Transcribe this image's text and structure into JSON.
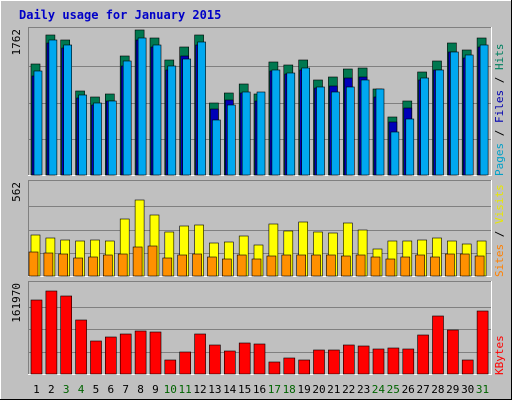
{
  "chart_data": {
    "type": "bar",
    "title": "Daily usage for January 2015",
    "days": [
      "1",
      "2",
      "3",
      "4",
      "5",
      "6",
      "7",
      "8",
      "9",
      "10",
      "11",
      "12",
      "13",
      "14",
      "15",
      "16",
      "17",
      "18",
      "19",
      "20",
      "21",
      "22",
      "23",
      "24",
      "25",
      "26",
      "27",
      "28",
      "29",
      "30",
      "31"
    ],
    "weekend_days": [
      "3",
      "4",
      "10",
      "11",
      "17",
      "18",
      "24",
      "25",
      "31"
    ],
    "day_color": "#000000",
    "weekend_color": "#006400",
    "panels": [
      {
        "ymax_label": "1762",
        "ymax": 1762,
        "legend": [
          {
            "text": "Pages",
            "color": "#00a0c8"
          },
          {
            "text": " / ",
            "color": "#000000"
          },
          {
            "text": "Files",
            "color": "#0000b0"
          },
          {
            "text": " / ",
            "color": "#000000"
          },
          {
            "text": "Hits",
            "color": "#008060"
          }
        ],
        "series": [
          {
            "name": "Hits",
            "color": "#007850",
            "values": [
              1345,
              1705,
              1640,
              1025,
              945,
              985,
              1450,
              1762,
              1660,
              1395,
              1560,
              1700,
              880,
              1000,
              1105,
              985,
              1370,
              1340,
              1395,
              1160,
              1185,
              1290,
              1300,
              1040,
              700,
              895,
              1250,
              1390,
              1600,
              1525,
              1665
            ]
          },
          {
            "name": "Files",
            "color": "#0000b8",
            "values": [
              1200,
              1600,
              1540,
              940,
              850,
              900,
              1330,
              1640,
              1550,
              1280,
              1450,
              1580,
              800,
              910,
              1000,
              900,
              1260,
              1230,
              1280,
              1060,
              1080,
              1180,
              1190,
              950,
              640,
              820,
              1150,
              1280,
              1490,
              1420,
              1550
            ]
          },
          {
            "name": "Pages",
            "color": "#00a8f0",
            "values": [
              1265,
              1645,
              1585,
              970,
              875,
              900,
              1380,
              1660,
              1580,
              1320,
              1405,
              1615,
              670,
              855,
              1010,
              1010,
              1270,
              1245,
              1300,
              1070,
              1010,
              1070,
              1150,
              1040,
              525,
              680,
              1180,
              1280,
              1500,
              1460,
              1585
            ]
          }
        ]
      },
      {
        "ymax_label": "562",
        "ymax": 562,
        "legend": [
          {
            "text": "Sites",
            "color": "#ff8000"
          },
          {
            "text": " / ",
            "color": "#000000"
          },
          {
            "text": "Visits",
            "color": "#e8e800"
          }
        ],
        "series": [
          {
            "name": "Visits",
            "color": "#ffff00",
            "values": [
              250,
              230,
              220,
              210,
              215,
              210,
              345,
              460,
              370,
              265,
              305,
              310,
              200,
              205,
              240,
              190,
              315,
              270,
              325,
              265,
              260,
              323,
              275,
              165,
              210,
              210,
              215,
              230,
              210,
              195,
              210
            ]
          },
          {
            "name": "Sites",
            "color": "#ff9000",
            "values": [
              145,
              140,
              135,
              110,
              115,
              125,
              135,
              175,
              180,
              110,
              125,
              130,
              115,
              100,
              125,
              100,
              120,
              125,
              125,
              125,
              125,
              120,
              125,
              115,
              100,
              115,
              125,
              115,
              135,
              130,
              120
            ]
          }
        ]
      },
      {
        "ymax_label": "161970",
        "ymax": 161970,
        "legend": [
          {
            "text": "KBytes",
            "color": "#ff0000"
          }
        ],
        "series": [
          {
            "name": "KBytes",
            "color": "#ff0000",
            "values": [
              133000,
              150000,
              140000,
              97000,
              60000,
              66000,
              72000,
              78000,
              75000,
              26000,
              40000,
              72000,
              52000,
              42000,
              55000,
              54000,
              22000,
              28000,
              26000,
              43000,
              43000,
              52000,
              50000,
              45000,
              46000,
              45000,
              70000,
              104000,
              79000,
              26000,
              114000
            ]
          }
        ]
      }
    ]
  }
}
